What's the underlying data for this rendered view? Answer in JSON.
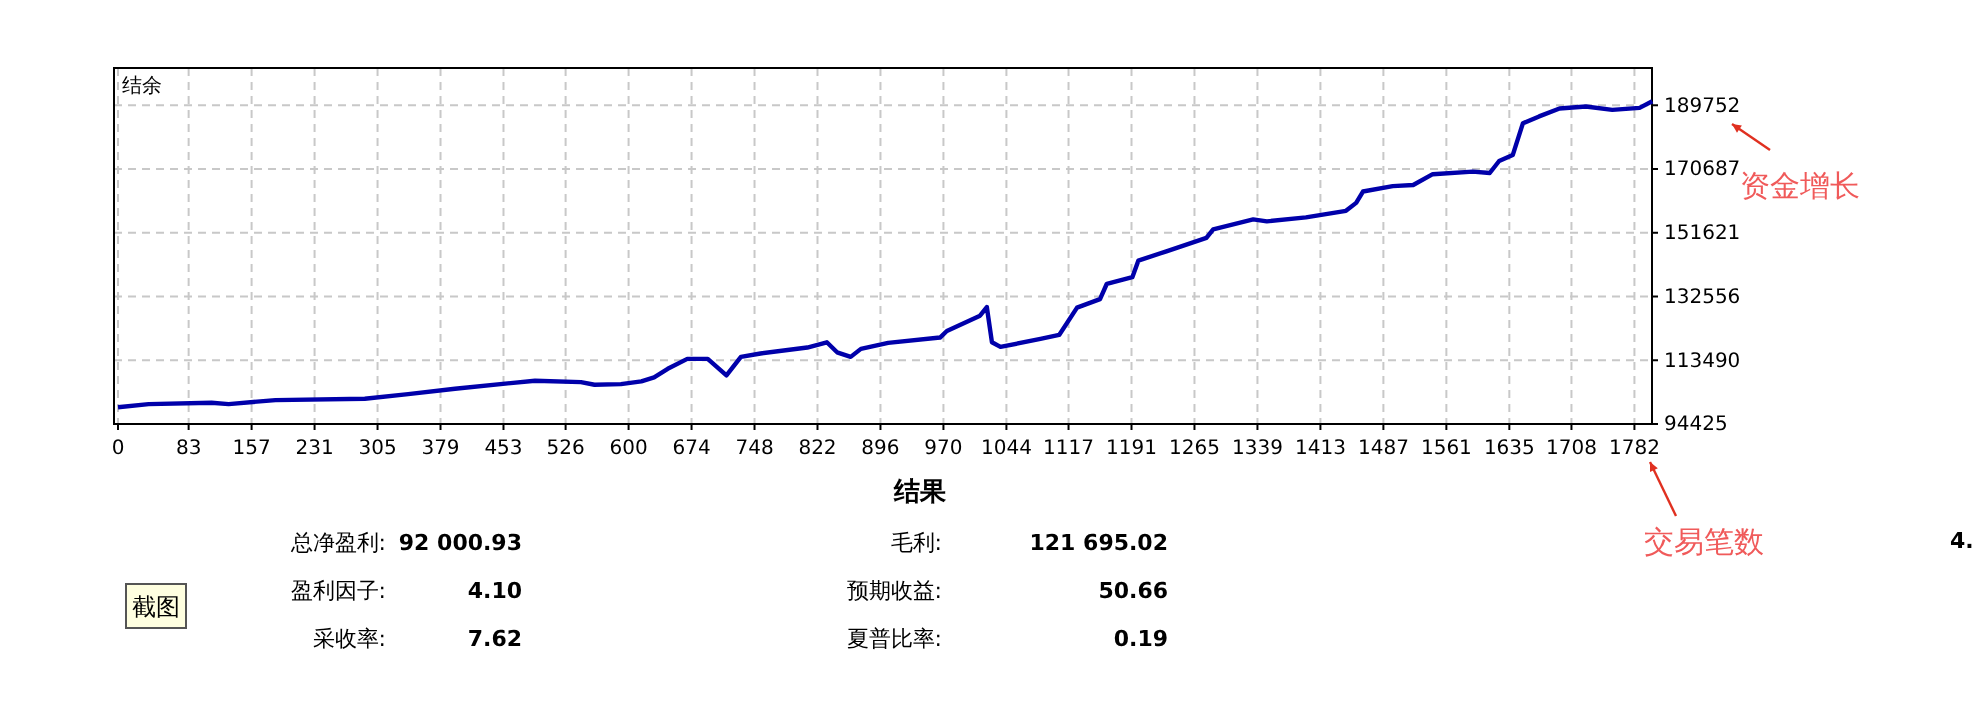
{
  "chart_data": {
    "type": "line",
    "ylabel": "结余",
    "x": [
      0,
      36,
      110,
      130,
      185,
      290,
      341,
      396,
      458,
      490,
      544,
      560,
      591,
      615,
      630,
      646,
      669,
      693,
      715,
      732,
      755,
      810,
      833,
      845,
      861,
      873,
      905,
      966,
      974,
      1013,
      1021,
      1027,
      1037,
      1084,
      1106,
      1127,
      1154,
      1162,
      1192,
      1199,
      1232,
      1279,
      1287,
      1334,
      1350,
      1396,
      1443,
      1455,
      1463,
      1498,
      1522,
      1545,
      1592,
      1612,
      1623,
      1639,
      1651,
      1670,
      1694,
      1725,
      1756,
      1788,
      1803
    ],
    "series": [
      {
        "color": "#0000aa",
        "values": [
          99430,
          100380,
          100800,
          100380,
          101580,
          101990,
          103360,
          104970,
          106580,
          107350,
          106940,
          106160,
          106340,
          107170,
          108370,
          110930,
          113910,
          113910,
          108960,
          114500,
          115520,
          117300,
          118860,
          115870,
          114500,
          116890,
          118700,
          120280,
          122250,
          126830,
          129400,
          118860,
          117480,
          119860,
          121060,
          129220,
          131780,
          136370,
          138340,
          143280,
          146080,
          150070,
          152640,
          155620,
          155020,
          156210,
          158180,
          160560,
          163960,
          165560,
          165920,
          169140,
          169910,
          169500,
          173080,
          174860,
          184390,
          186420,
          188800,
          189400,
          188380,
          188980,
          190940
        ]
      }
    ],
    "xlim": [
      0,
      1805
    ],
    "ylim": [
      94425,
      200900
    ],
    "xticks": [
      0,
      83,
      157,
      231,
      305,
      379,
      453,
      526,
      600,
      674,
      748,
      822,
      896,
      970,
      1044,
      1117,
      1191,
      1265,
      1339,
      1413,
      1487,
      1561,
      1635,
      1708,
      1782
    ],
    "yticks": [
      94425,
      113490,
      132556,
      151621,
      170687,
      189752
    ],
    "grid": true,
    "line_style": "solid",
    "marker": "none",
    "annotations": [
      "结果",
      "总净盈利:",
      "92 000.93",
      "盈利因子:",
      "4.10",
      "采收率:",
      "7.62",
      "毛利:",
      "121 695.02",
      "预期收益:",
      "50.66",
      "夏普比率:",
      "0.19",
      "截图",
      "资金增长",
      "交易笔数",
      "4."
    ]
  }
}
